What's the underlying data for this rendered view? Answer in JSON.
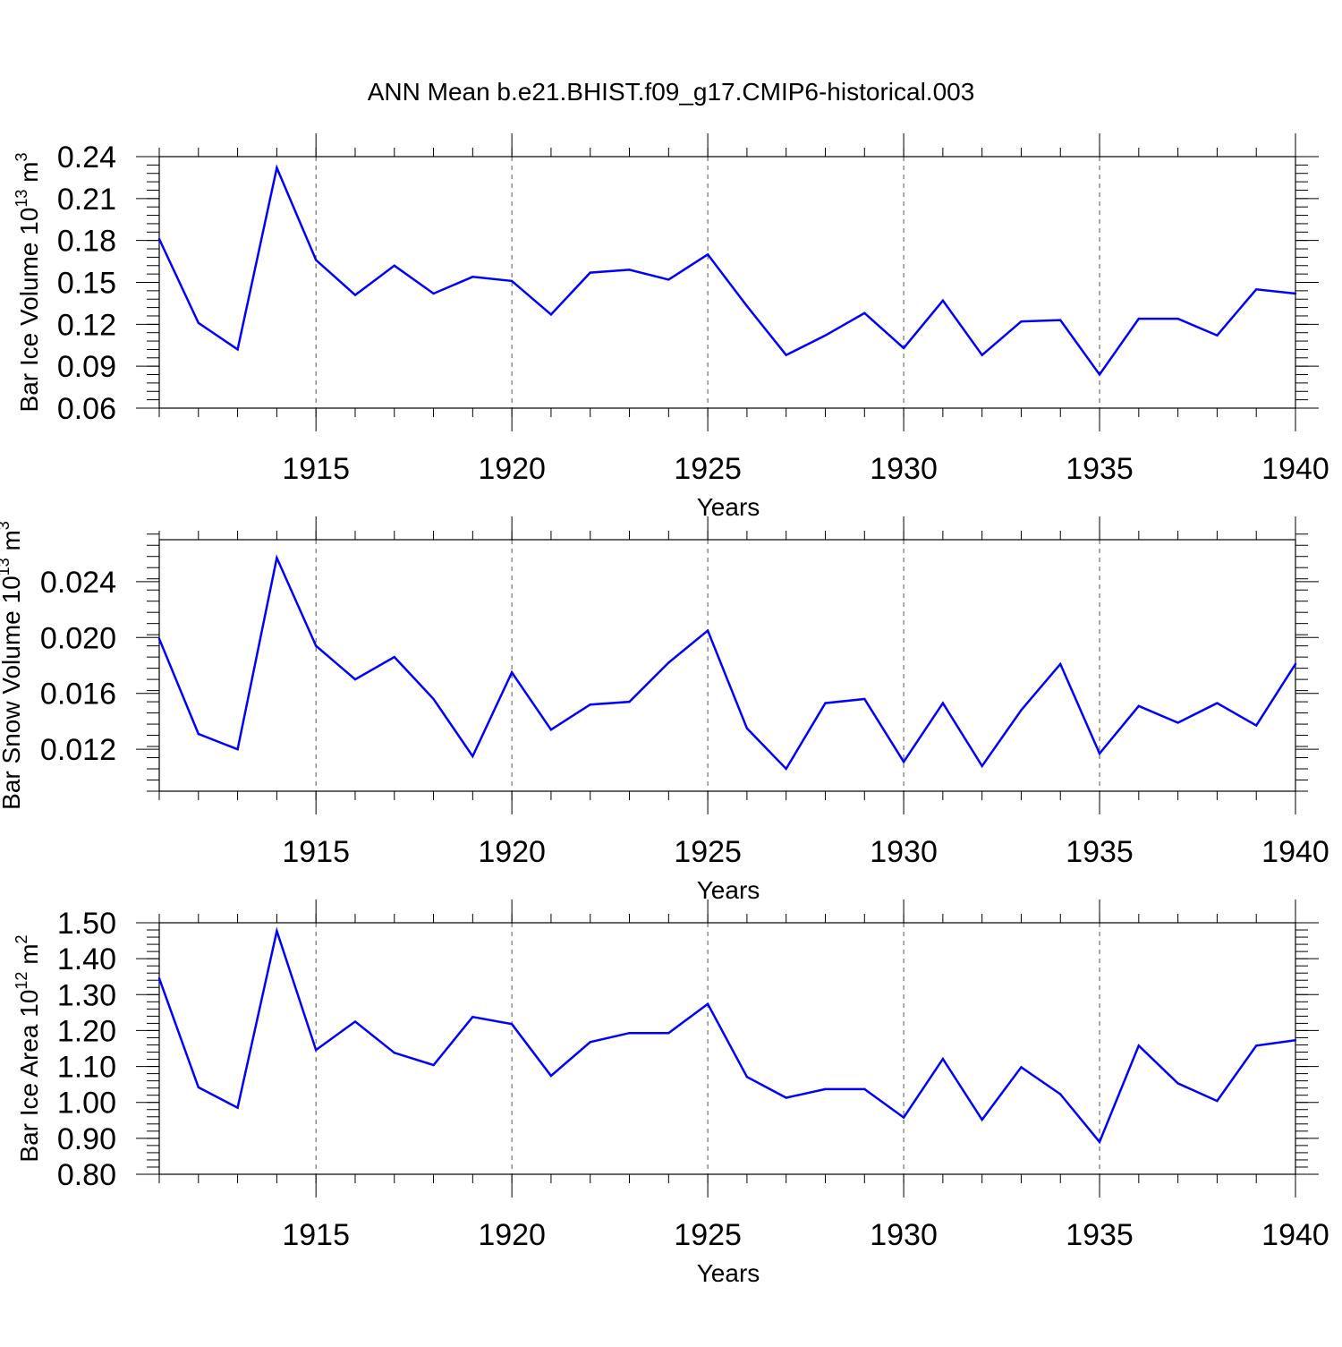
{
  "title": "ANN Mean b.e21.BHIST.f09_g17.CMIP6-historical.003",
  "colors": {
    "line": "#0000ff",
    "axis": "#000000",
    "grid": "#555555"
  },
  "chart_data": [
    {
      "type": "line",
      "ylabel": {
        "main": "Bar Ice Volume 10",
        "sup": "13",
        "unit": " m",
        "unit_sup": "3"
      },
      "xlabel": "Years",
      "xlim": [
        1911,
        1940
      ],
      "ylim": [
        0.06,
        0.24
      ],
      "yticks": [
        "0.06",
        "0.09",
        "0.12",
        "0.15",
        "0.18",
        "0.21",
        "0.24"
      ],
      "xticks": [
        "1915",
        "1920",
        "1925",
        "1930",
        "1935",
        "1940"
      ],
      "grid": "x-dashed",
      "x": [
        1911,
        1912,
        1913,
        1914,
        1915,
        1916,
        1917,
        1918,
        1919,
        1920,
        1921,
        1922,
        1923,
        1924,
        1925,
        1926,
        1927,
        1928,
        1929,
        1930,
        1931,
        1932,
        1933,
        1934,
        1935,
        1936,
        1937,
        1938,
        1939,
        1940
      ],
      "values": [
        0.181,
        0.121,
        0.102,
        0.232,
        0.166,
        0.141,
        0.162,
        0.142,
        0.154,
        0.151,
        0.127,
        0.157,
        0.159,
        0.152,
        0.17,
        0.133,
        0.098,
        0.112,
        0.128,
        0.103,
        0.137,
        0.098,
        0.122,
        0.123,
        0.084,
        0.124,
        0.124,
        0.112,
        0.145,
        0.142
      ]
    },
    {
      "type": "line",
      "ylabel": {
        "main": "Bar Snow Volume 10",
        "sup": "13",
        "unit": " m",
        "unit_sup": "3"
      },
      "xlabel": "Years",
      "xlim": [
        1911,
        1940
      ],
      "ylim": [
        0.009,
        0.027
      ],
      "yticks": [
        "0.012",
        "0.016",
        "0.020",
        "0.024"
      ],
      "xticks": [
        "1915",
        "1920",
        "1925",
        "1930",
        "1935",
        "1940"
      ],
      "grid": "x-dashed",
      "x": [
        1911,
        1912,
        1913,
        1914,
        1915,
        1916,
        1917,
        1918,
        1919,
        1920,
        1921,
        1922,
        1923,
        1924,
        1925,
        1926,
        1927,
        1928,
        1929,
        1930,
        1931,
        1932,
        1933,
        1934,
        1935,
        1936,
        1937,
        1938,
        1939,
        1940
      ],
      "values": [
        0.0199,
        0.0131,
        0.012,
        0.0257,
        0.0194,
        0.017,
        0.0186,
        0.0156,
        0.0115,
        0.0175,
        0.0134,
        0.0152,
        0.0154,
        0.0182,
        0.0205,
        0.0135,
        0.0106,
        0.0153,
        0.0156,
        0.0111,
        0.0153,
        0.0108,
        0.0148,
        0.0181,
        0.0117,
        0.0151,
        0.0139,
        0.0153,
        0.0137,
        0.0181
      ]
    },
    {
      "type": "line",
      "ylabel": {
        "main": "Bar Ice Area 10",
        "sup": "12",
        "unit": " m",
        "unit_sup": "2"
      },
      "xlabel": "Years",
      "xlim": [
        1911,
        1940
      ],
      "ylim": [
        0.8,
        1.5
      ],
      "yticks": [
        "0.80",
        "0.90",
        "1.00",
        "1.10",
        "1.20",
        "1.30",
        "1.40",
        "1.50"
      ],
      "xticks": [
        "1915",
        "1920",
        "1925",
        "1930",
        "1935",
        "1940"
      ],
      "grid": "x-dashed",
      "x": [
        1911,
        1912,
        1913,
        1914,
        1915,
        1916,
        1917,
        1918,
        1919,
        1920,
        1921,
        1922,
        1923,
        1924,
        1925,
        1926,
        1927,
        1928,
        1929,
        1930,
        1931,
        1932,
        1933,
        1934,
        1935,
        1936,
        1937,
        1938,
        1939,
        1940
      ],
      "values": [
        1.345,
        1.042,
        0.985,
        1.477,
        1.146,
        1.225,
        1.138,
        1.104,
        1.238,
        1.218,
        1.074,
        1.168,
        1.193,
        1.193,
        1.274,
        1.071,
        1.013,
        1.037,
        1.037,
        0.958,
        1.121,
        0.952,
        1.098,
        1.023,
        0.89,
        1.158,
        1.053,
        1.004,
        1.158,
        1.173
      ]
    }
  ]
}
